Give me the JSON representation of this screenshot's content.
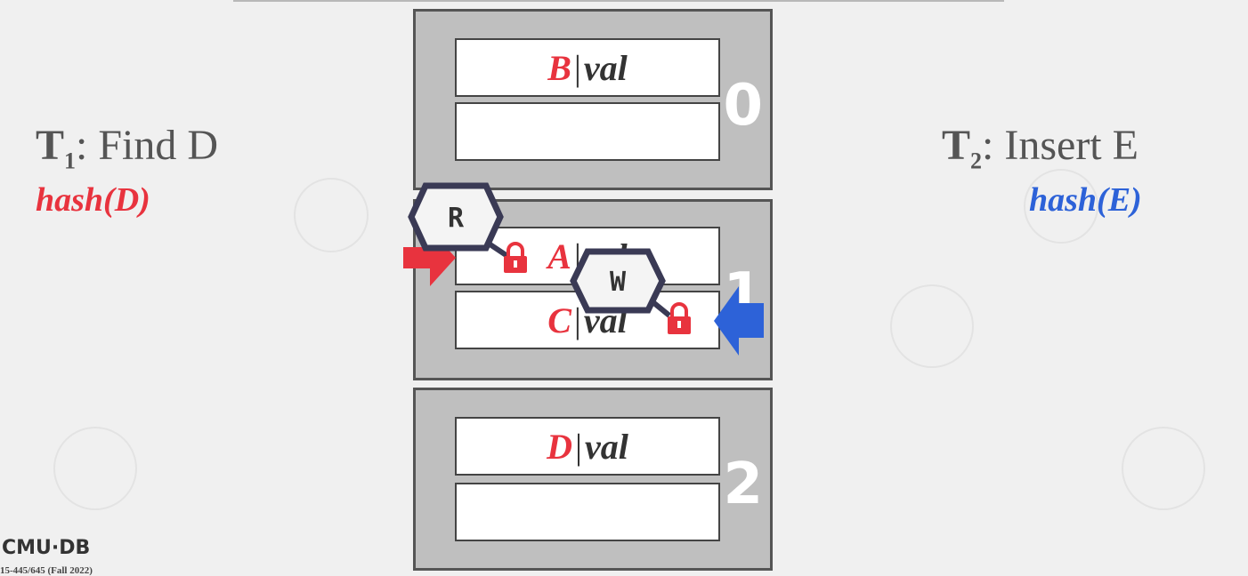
{
  "txn1": {
    "name": "T",
    "sub": "1",
    "action": ": Find D",
    "hash": "hash(D)",
    "color": "#e8333e"
  },
  "txn2": {
    "name": "T",
    "sub": "2",
    "action": ": Insert E",
    "hash": "hash(E)",
    "color": "#2d62d8"
  },
  "pages": [
    {
      "number": "0",
      "slots": [
        {
          "key": "B",
          "sep": "|",
          "val": "val"
        },
        {
          "key": "",
          "sep": "",
          "val": ""
        }
      ]
    },
    {
      "number": "1",
      "slots": [
        {
          "key": "A",
          "sep": "|",
          "val": "val"
        },
        {
          "key": "C",
          "sep": "|",
          "val": "val"
        }
      ]
    },
    {
      "number": "2",
      "slots": [
        {
          "key": "D",
          "sep": "|",
          "val": "val"
        },
        {
          "key": "",
          "sep": "",
          "val": ""
        }
      ]
    }
  ],
  "latches": {
    "read": "R",
    "write": "W"
  },
  "footer": {
    "logo": "CMU·DB",
    "course": "15-445/645 (Fall 2022)"
  },
  "colors": {
    "page_fill": "#bfbfbf",
    "lock": "#e8333e",
    "arrow_t1": "#e8333e",
    "arrow_t2": "#2d62d8",
    "latch_border": "#3a3a55"
  }
}
